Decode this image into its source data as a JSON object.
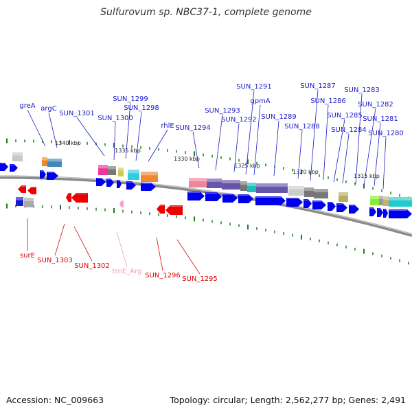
{
  "title": "Sulfurovum sp. NBC37-1, complete genome",
  "footer": {
    "accession": "Accession: NC_009663",
    "summary": "Topology: circular; Length: 2,562,277 bp; Genes: 2,491"
  },
  "colors": {
    "forward_gene": "#0000ee",
    "reverse_gene": "#ee0000",
    "rna_gene": "#f0a0d0",
    "tick": "#1a7a1a",
    "backbone": "#8a8a8a",
    "forward_label": "#1a1acc",
    "reverse_label": "#dd0000",
    "rna_label": "#ee99cc"
  },
  "scale_labels": [
    "1340 kbp",
    "1335 kbp",
    "1330 kbp",
    "1325 kbp",
    "1320 kbp",
    "1315 kbp"
  ],
  "forward_gene_labels": [
    "greA",
    "argC",
    "SUN_1301",
    "SUN_1300",
    "SUN_1299",
    "SUN_1298",
    "rhlE",
    "SUN_1294",
    "SUN_1293",
    "SUN_1292",
    "SUN_1291",
    "gpmA",
    "SUN_1289",
    "SUN_1288",
    "SUN_1287",
    "SUN_1286",
    "SUN_1285",
    "SUN_1284",
    "SUN_1283",
    "SUN_1282",
    "SUN_1281",
    "SUN_1280"
  ],
  "reverse_gene_labels": [
    "surE",
    "SUN_1303",
    "SUN_1302",
    "trnE_Arg",
    "SUN_1296",
    "SUN_1295"
  ]
}
